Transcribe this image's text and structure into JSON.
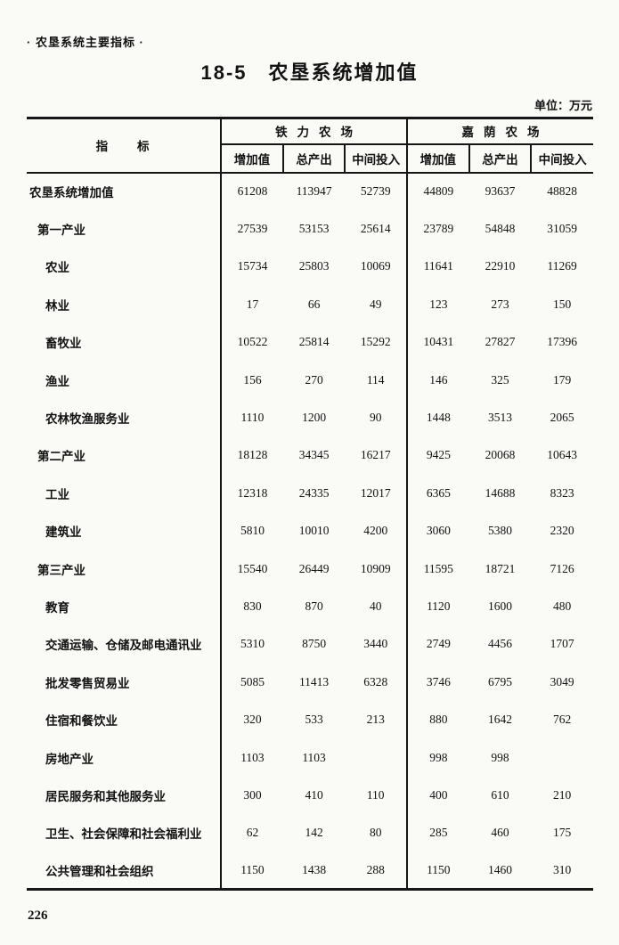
{
  "page": {
    "header_note": "· 农垦系统主要指标 ·",
    "title": "18-5　农垦系统增加值",
    "unit_note": "单位：万元",
    "page_number": "226"
  },
  "table": {
    "indicator_header": "指　　标",
    "groups": [
      {
        "label": "铁力农场",
        "columns": [
          "增加值",
          "总产出",
          "中间投入"
        ]
      },
      {
        "label": "嘉荫农场",
        "columns": [
          "增加值",
          "总产出",
          "中间投入"
        ]
      }
    ],
    "rows": [
      {
        "label": "农垦系统增加值",
        "indent": 0,
        "values": [
          "61208",
          "113947",
          "52739",
          "44809",
          "93637",
          "48828"
        ]
      },
      {
        "label": "第一产业",
        "indent": 1,
        "values": [
          "27539",
          "53153",
          "25614",
          "23789",
          "54848",
          "31059"
        ]
      },
      {
        "label": "农业",
        "indent": 2,
        "values": [
          "15734",
          "25803",
          "10069",
          "11641",
          "22910",
          "11269"
        ]
      },
      {
        "label": "林业",
        "indent": 2,
        "values": [
          "17",
          "66",
          "49",
          "123",
          "273",
          "150"
        ]
      },
      {
        "label": "畜牧业",
        "indent": 2,
        "values": [
          "10522",
          "25814",
          "15292",
          "10431",
          "27827",
          "17396"
        ]
      },
      {
        "label": "渔业",
        "indent": 2,
        "values": [
          "156",
          "270",
          "114",
          "146",
          "325",
          "179"
        ]
      },
      {
        "label": "农林牧渔服务业",
        "indent": 2,
        "values": [
          "1110",
          "1200",
          "90",
          "1448",
          "3513",
          "2065"
        ]
      },
      {
        "label": "第二产业",
        "indent": 1,
        "values": [
          "18128",
          "34345",
          "16217",
          "9425",
          "20068",
          "10643"
        ]
      },
      {
        "label": "工业",
        "indent": 2,
        "values": [
          "12318",
          "24335",
          "12017",
          "6365",
          "14688",
          "8323"
        ]
      },
      {
        "label": "建筑业",
        "indent": 2,
        "values": [
          "5810",
          "10010",
          "4200",
          "3060",
          "5380",
          "2320"
        ]
      },
      {
        "label": "第三产业",
        "indent": 1,
        "values": [
          "15540",
          "26449",
          "10909",
          "11595",
          "18721",
          "7126"
        ]
      },
      {
        "label": "教育",
        "indent": 2,
        "values": [
          "830",
          "870",
          "40",
          "1120",
          "1600",
          "480"
        ]
      },
      {
        "label": "交通运输、仓储及邮电通讯业",
        "indent": 2,
        "values": [
          "5310",
          "8750",
          "3440",
          "2749",
          "4456",
          "1707"
        ]
      },
      {
        "label": "批发零售贸易业",
        "indent": 2,
        "values": [
          "5085",
          "11413",
          "6328",
          "3746",
          "6795",
          "3049"
        ]
      },
      {
        "label": "住宿和餐饮业",
        "indent": 2,
        "values": [
          "320",
          "533",
          "213",
          "880",
          "1642",
          "762"
        ]
      },
      {
        "label": "房地产业",
        "indent": 2,
        "values": [
          "1103",
          "1103",
          "",
          "998",
          "998",
          ""
        ]
      },
      {
        "label": "居民服务和其他服务业",
        "indent": 2,
        "values": [
          "300",
          "410",
          "110",
          "400",
          "610",
          "210"
        ]
      },
      {
        "label": "卫生、社会保障和社会福利业",
        "indent": 2,
        "values": [
          "62",
          "142",
          "80",
          "285",
          "460",
          "175"
        ]
      },
      {
        "label": "公共管理和社会组织",
        "indent": 2,
        "values": [
          "1150",
          "1438",
          "288",
          "1150",
          "1460",
          "310"
        ]
      }
    ]
  }
}
